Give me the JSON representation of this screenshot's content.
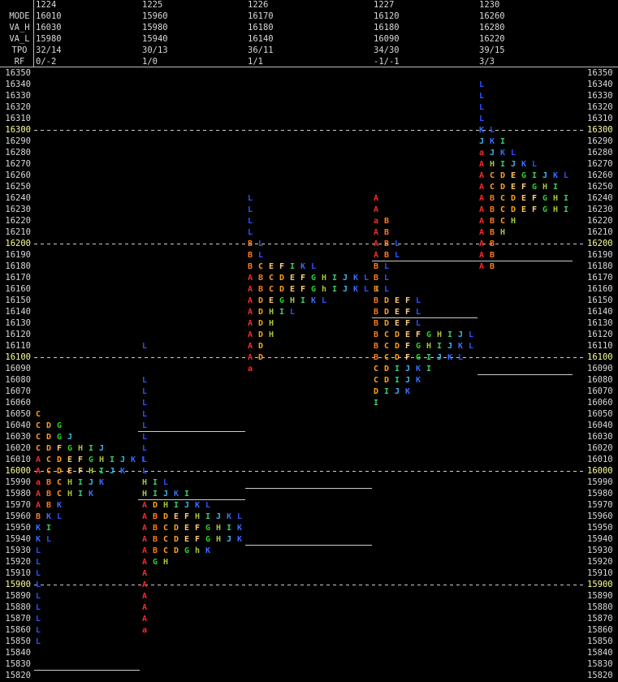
{
  "header_labels": [
    "MODE",
    "VA_H",
    "VA_L",
    "TPO",
    "RF"
  ],
  "columns": [
    {
      "date": "1224",
      "stats": [
        "16010",
        "16030",
        "15980",
        "32/14",
        "0/-2"
      ],
      "levels": [
        15825
      ],
      "profile": [
        {
          "price": 16050,
          "tpo": "C"
        },
        {
          "price": 16040,
          "tpo": "CDG"
        },
        {
          "price": 16030,
          "tpo": "CDGJ"
        },
        {
          "price": 16020,
          "tpo": "CDFGHIJ"
        },
        {
          "price": 16010,
          "tpo": "ACDEFGHIJKL"
        },
        {
          "price": 16000,
          "tpo": "ACDEFHIJK"
        },
        {
          "price": 15990,
          "tpo": "aBCHIJK"
        },
        {
          "price": 15980,
          "tpo": "ABCHIK"
        },
        {
          "price": 15970,
          "tpo": "ABK"
        },
        {
          "price": 15960,
          "tpo": "BKL"
        },
        {
          "price": 15950,
          "tpo": "KI"
        },
        {
          "price": 15940,
          "tpo": "KL"
        },
        {
          "price": 15930,
          "tpo": "L"
        },
        {
          "price": 15920,
          "tpo": "L"
        },
        {
          "price": 15910,
          "tpo": "L"
        },
        {
          "price": 15900,
          "tpo": "L"
        },
        {
          "price": 15890,
          "tpo": "L"
        },
        {
          "price": 15880,
          "tpo": "L"
        },
        {
          "price": 15870,
          "tpo": "L"
        },
        {
          "price": 15860,
          "tpo": "L"
        },
        {
          "price": 15850,
          "tpo": "L"
        }
      ]
    },
    {
      "date": "1225",
      "stats": [
        "15960",
        "15980",
        "15940",
        "30/13",
        "1/0"
      ],
      "levels": [
        16035,
        15975
      ],
      "profile": [
        {
          "price": 16110,
          "tpo": "L"
        },
        {
          "price": 16080,
          "tpo": "L"
        },
        {
          "price": 16070,
          "tpo": "L"
        },
        {
          "price": 16060,
          "tpo": "L"
        },
        {
          "price": 16050,
          "tpo": "L"
        },
        {
          "price": 16040,
          "tpo": "L"
        },
        {
          "price": 16030,
          "tpo": "L"
        },
        {
          "price": 16020,
          "tpo": "L"
        },
        {
          "price": 16010,
          "tpo": "L"
        },
        {
          "price": 16000,
          "tpo": "L"
        },
        {
          "price": 15990,
          "tpo": "HIL"
        },
        {
          "price": 15980,
          "tpo": "HIJKI"
        },
        {
          "price": 15970,
          "tpo": "ADHIJKL"
        },
        {
          "price": 15960,
          "tpo": "ABDEFHIJKL"
        },
        {
          "price": 15950,
          "tpo": "ABCDEFGHIK"
        },
        {
          "price": 15940,
          "tpo": "ABCDEFGHJK"
        },
        {
          "price": 15930,
          "tpo": "ABCDGhK"
        },
        {
          "price": 15920,
          "tpo": "AGH"
        },
        {
          "price": 15910,
          "tpo": "A"
        },
        {
          "price": 15900,
          "tpo": "A"
        },
        {
          "price": 15890,
          "tpo": "A"
        },
        {
          "price": 15880,
          "tpo": "A"
        },
        {
          "price": 15870,
          "tpo": "A"
        },
        {
          "price": 15860,
          "tpo": "a"
        }
      ]
    },
    {
      "date": "1226",
      "stats": [
        "16170",
        "16180",
        "16140",
        "36/11",
        "1/1"
      ],
      "levels": [
        15985,
        15935
      ],
      "profile": [
        {
          "price": 16240,
          "tpo": "L"
        },
        {
          "price": 16230,
          "tpo": "L"
        },
        {
          "price": 16220,
          "tpo": "L"
        },
        {
          "price": 16210,
          "tpo": "L"
        },
        {
          "price": 16200,
          "tpo": "BL"
        },
        {
          "price": 16190,
          "tpo": "BL"
        },
        {
          "price": 16180,
          "tpo": "BCEFIKL"
        },
        {
          "price": 16170,
          "tpo": "ABCDEFGHIJKL"
        },
        {
          "price": 16160,
          "tpo": "ABCDEFGhIJKLI"
        },
        {
          "price": 16150,
          "tpo": "ADEGHIKL"
        },
        {
          "price": 16140,
          "tpo": "ADHIL"
        },
        {
          "price": 16130,
          "tpo": "ADH"
        },
        {
          "price": 16120,
          "tpo": "ADH"
        },
        {
          "price": 16110,
          "tpo": "AD"
        },
        {
          "price": 16100,
          "tpo": "AD"
        },
        {
          "price": 16090,
          "tpo": "a"
        }
      ]
    },
    {
      "date": "1227",
      "stats": [
        "16120",
        "16180",
        "16090",
        "34/30",
        "-1/-1"
      ],
      "levels": [
        16185,
        16135
      ],
      "profile": [
        {
          "price": 16240,
          "tpo": "A"
        },
        {
          "price": 16230,
          "tpo": "A"
        },
        {
          "price": 16220,
          "tpo": "aB"
        },
        {
          "price": 16210,
          "tpo": "AB"
        },
        {
          "price": 16200,
          "tpo": "ABL"
        },
        {
          "price": 16190,
          "tpo": "ABL"
        },
        {
          "price": 16180,
          "tpo": "BL"
        },
        {
          "price": 16170,
          "tpo": "BL"
        },
        {
          "price": 16160,
          "tpo": "BL"
        },
        {
          "price": 16150,
          "tpo": "BDEFL"
        },
        {
          "price": 16140,
          "tpo": "BDEFL"
        },
        {
          "price": 16130,
          "tpo": "BDEFL"
        },
        {
          "price": 16120,
          "tpo": "BCDEFGHIJL"
        },
        {
          "price": 16110,
          "tpo": "BCDFGHIJKL"
        },
        {
          "price": 16100,
          "tpo": "BCDFGIJKL"
        },
        {
          "price": 16090,
          "tpo": "CDIJKI"
        },
        {
          "price": 16080,
          "tpo": "CDIJK"
        },
        {
          "price": 16070,
          "tpo": "DIJK"
        },
        {
          "price": 16060,
          "tpo": "I"
        }
      ]
    },
    {
      "date": "1230",
      "stats": [
        "16260",
        "16280",
        "16220",
        "39/15",
        "3/3"
      ],
      "levels": [
        16185,
        16085
      ],
      "profile": [
        {
          "price": 16340,
          "tpo": "L"
        },
        {
          "price": 16330,
          "tpo": "L"
        },
        {
          "price": 16320,
          "tpo": "L"
        },
        {
          "price": 16310,
          "tpo": "L"
        },
        {
          "price": 16300,
          "tpo": "KL"
        },
        {
          "price": 16290,
          "tpo": "JKI"
        },
        {
          "price": 16280,
          "tpo": "aJKL"
        },
        {
          "price": 16270,
          "tpo": "AHIJKL"
        },
        {
          "price": 16260,
          "tpo": "ACDEGIJKL"
        },
        {
          "price": 16250,
          "tpo": "ACDEFGHI"
        },
        {
          "price": 16240,
          "tpo": "ABCDEFGHI"
        },
        {
          "price": 16230,
          "tpo": "ABCDEFGHI"
        },
        {
          "price": 16220,
          "tpo": "ABCH"
        },
        {
          "price": 16210,
          "tpo": "ABH"
        },
        {
          "price": 16200,
          "tpo": "AB"
        },
        {
          "price": 16190,
          "tpo": "AB"
        },
        {
          "price": 16180,
          "tpo": "AB"
        }
      ]
    }
  ],
  "price_ticks": [
    16350,
    16340,
    16330,
    16320,
    16310,
    16300,
    16290,
    16280,
    16270,
    16260,
    16250,
    16240,
    16230,
    16220,
    16210,
    16200,
    16190,
    16180,
    16170,
    16160,
    16150,
    16140,
    16130,
    16120,
    16110,
    16100,
    16090,
    16080,
    16070,
    16060,
    16050,
    16040,
    16030,
    16020,
    16010,
    16000,
    15990,
    15980,
    15970,
    15960,
    15950,
    15940,
    15930,
    15920,
    15910,
    15900,
    15890,
    15880,
    15870,
    15860,
    15850,
    15840,
    15830,
    15820
  ],
  "highlight_prices": [
    16300,
    16200,
    16100,
    16000,
    15900
  ],
  "letter_colors": {
    "A": "#ff2a2a",
    "a": "#ff2a2a",
    "B": "#ff7a1a",
    "C": "#ff9a33",
    "D": "#ffa41c",
    "E": "#ffc46e",
    "F": "#ffcf85",
    "G": "#2fcf2f",
    "H": "#a8c83a",
    "h": "#a8c83a",
    "I": "#3acb6a",
    "J": "#3fb8f0",
    "K": "#3a6cff",
    "L": "#3050ff"
  }
}
